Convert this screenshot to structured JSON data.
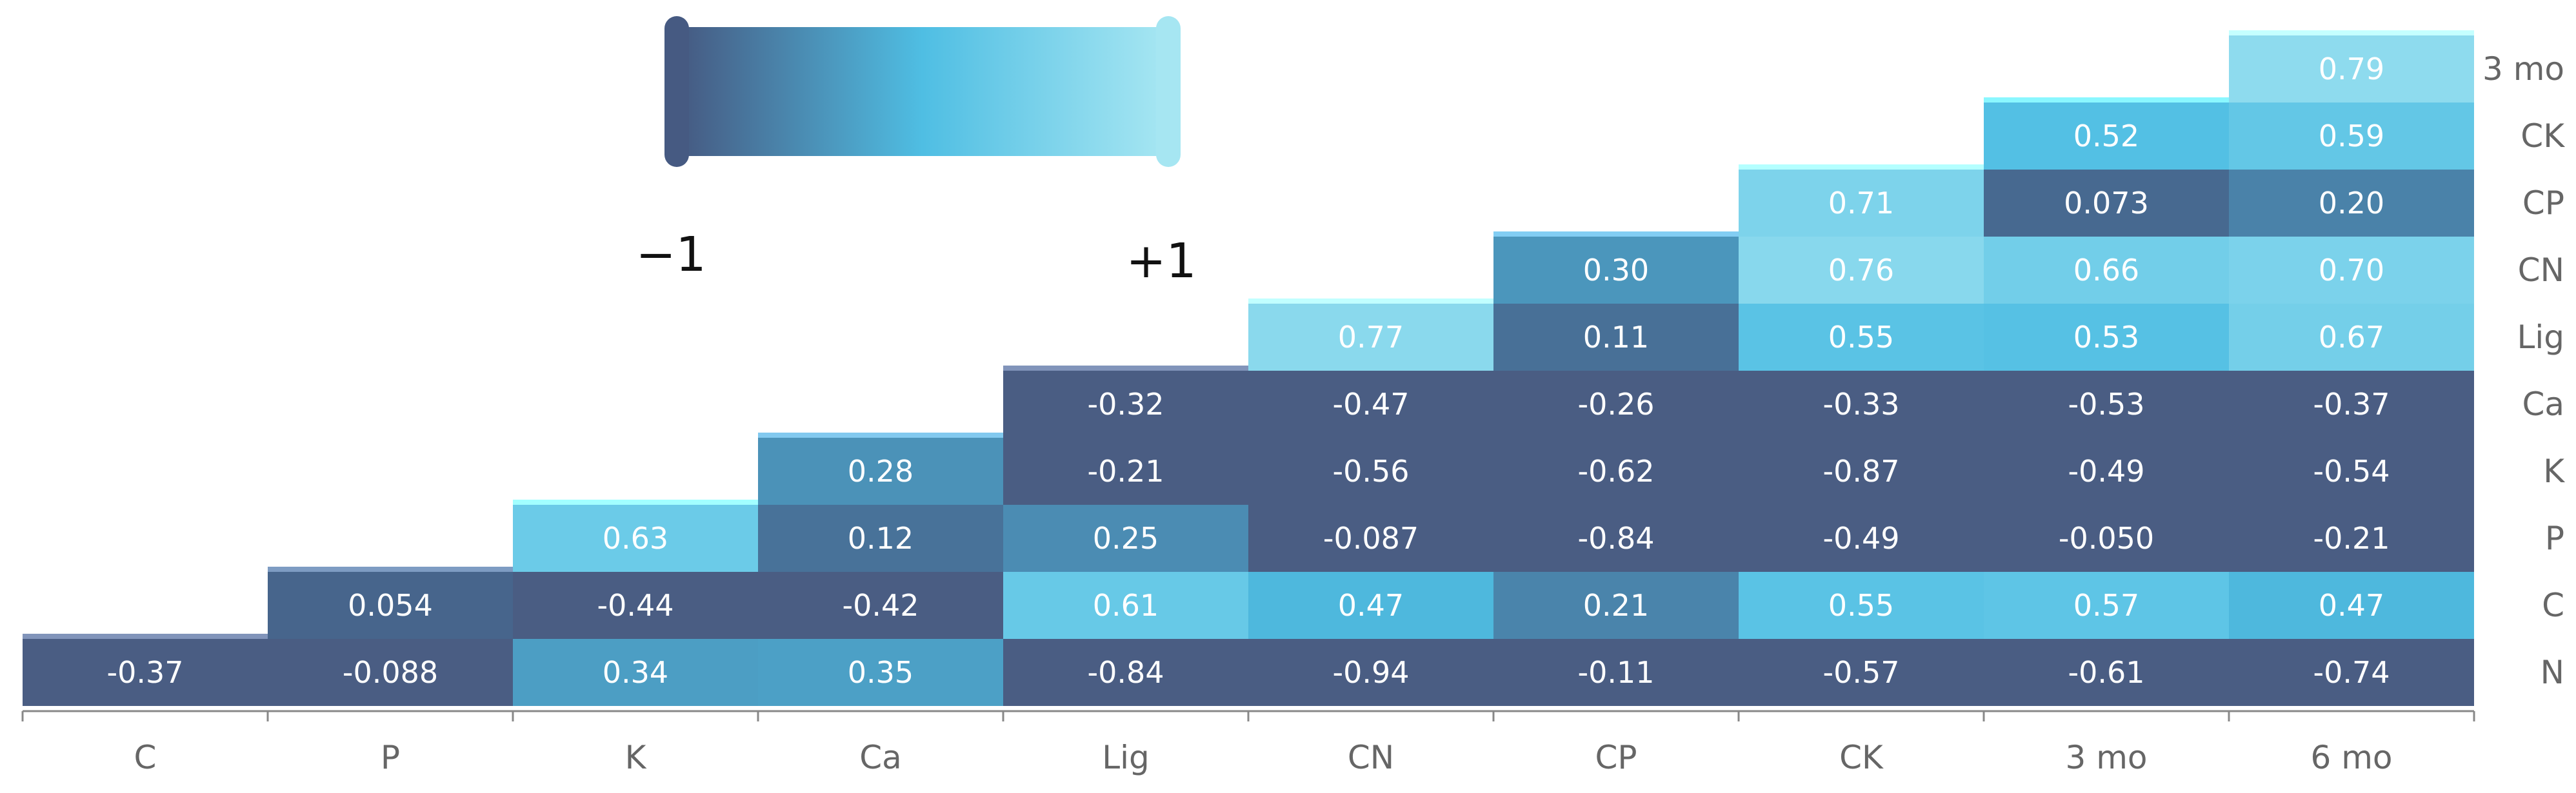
{
  "chart_data": {
    "type": "heatmap",
    "title": "",
    "x_categories": [
      "C",
      "P",
      "K",
      "Ca",
      "Lig",
      "CN",
      "CP",
      "CK",
      "3 mo",
      "6 mo"
    ],
    "y_categories": [
      "N",
      "C",
      "P",
      "K",
      "Ca",
      "Lig",
      "CN",
      "CP",
      "CK",
      "3 mo"
    ],
    "values": [
      [
        "-0.37",
        "-0.088",
        "0.34",
        "0.35",
        "-0.84",
        "-0.94",
        "-0.11",
        "-0.57",
        "-0.61",
        "-0.74"
      ],
      [
        null,
        "0.054",
        "-0.44",
        "-0.42",
        "0.61",
        "0.47",
        "0.21",
        "0.55",
        "0.57",
        "0.47"
      ],
      [
        null,
        null,
        "0.63",
        "0.12",
        "0.25",
        "-0.087",
        "-0.84",
        "-0.49",
        "-0.050",
        "-0.21"
      ],
      [
        null,
        null,
        null,
        "0.28",
        "-0.21",
        "-0.56",
        "-0.62",
        "-0.87",
        "-0.49",
        "-0.54"
      ],
      [
        null,
        null,
        null,
        null,
        "-0.32",
        "-0.47",
        "-0.26",
        "-0.33",
        "-0.53",
        "-0.37"
      ],
      [
        null,
        null,
        null,
        null,
        null,
        "0.77",
        "0.11",
        "0.55",
        "0.53",
        "0.67"
      ],
      [
        null,
        null,
        null,
        null,
        null,
        null,
        "0.30",
        "0.76",
        "0.66",
        "0.70"
      ],
      [
        null,
        null,
        null,
        null,
        null,
        null,
        null,
        "0.71",
        "0.073",
        "0.20"
      ],
      [
        null,
        null,
        null,
        null,
        null,
        null,
        null,
        null,
        "0.52",
        "0.59"
      ],
      [
        null,
        null,
        null,
        null,
        null,
        null,
        null,
        null,
        null,
        "0.79"
      ]
    ],
    "colorscale": {
      "min_label": "−1",
      "max_label": "+1",
      "range": [
        -1,
        1
      ],
      "colors": [
        "#465a82",
        "#4fbee3",
        "#a6e6f2"
      ]
    },
    "negative_color": "#4a5d83"
  }
}
